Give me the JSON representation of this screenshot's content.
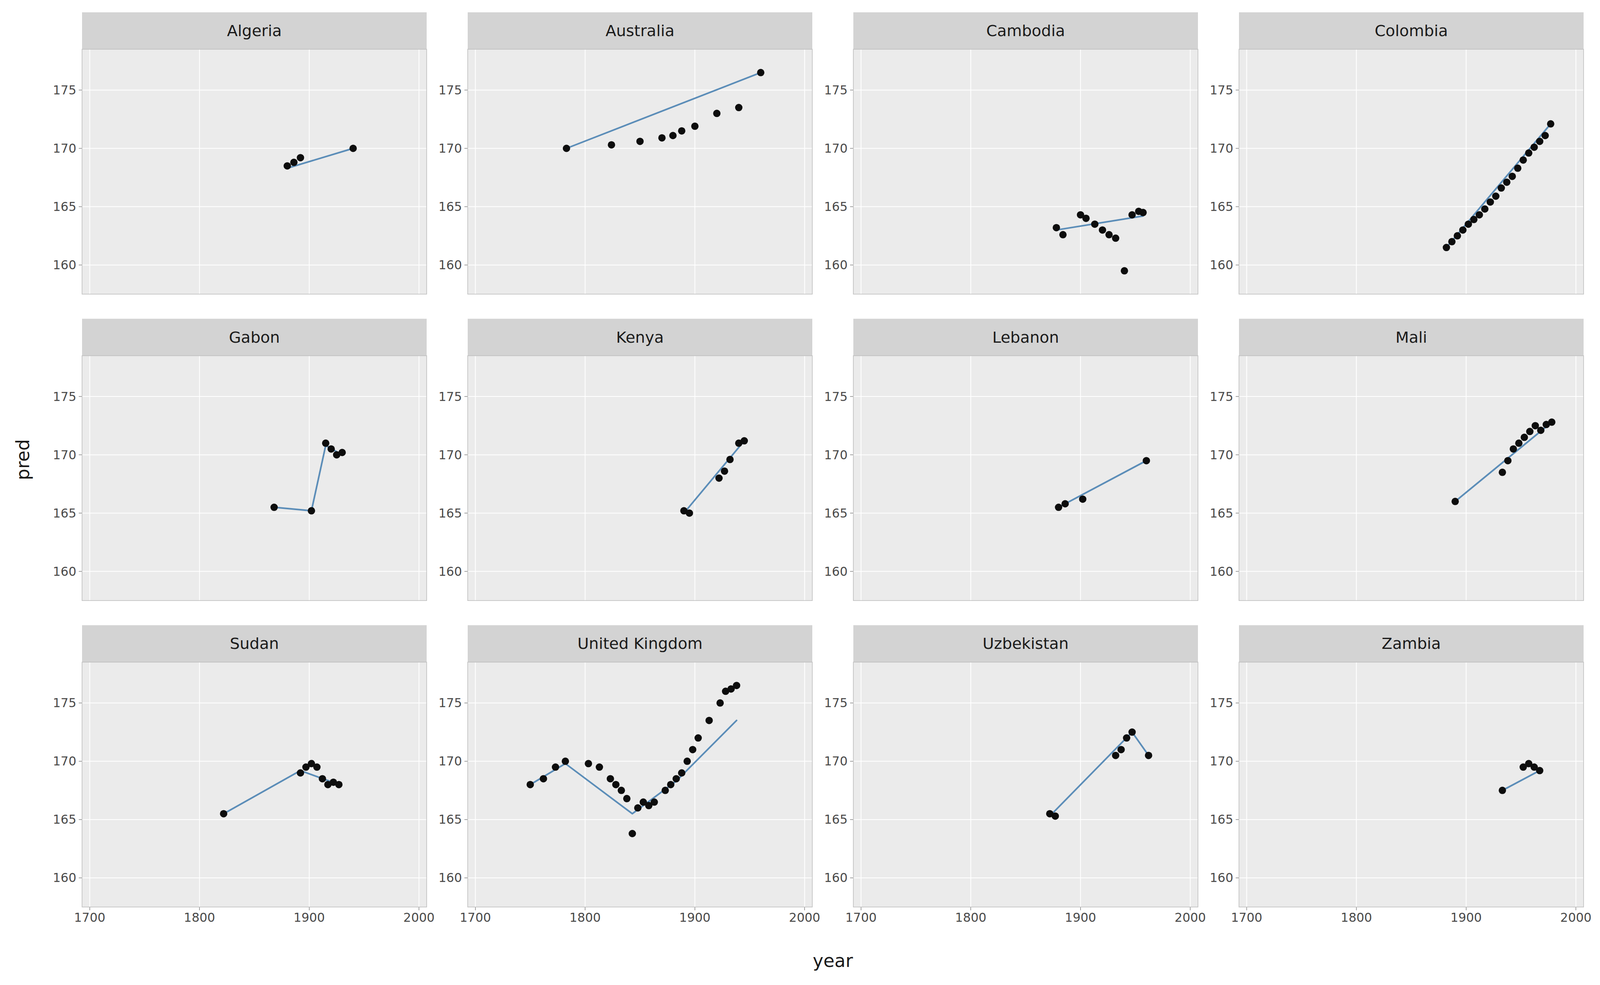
{
  "chart_data": [
    {
      "type": "scatter",
      "title": "Algeria",
      "xlabel": "year",
      "ylabel": "pred",
      "xlim": [
        1693,
        2007
      ],
      "ylim": [
        157.5,
        178.5
      ],
      "xticks": [
        1700,
        1800,
        1900,
        2000
      ],
      "yticks": [
        160,
        165,
        170,
        175
      ],
      "grid": true,
      "tick_labels": "y",
      "series": [
        {
          "type": "scatter",
          "color": "#0D0D0D",
          "x": [
            1880,
            1886,
            1892,
            1940
          ],
          "values": [
            168.5,
            168.8,
            169.2,
            170.0
          ]
        },
        {
          "type": "line",
          "color": "#5B8DB8",
          "x": [
            1880,
            1940
          ],
          "values": [
            168.3,
            170.0
          ]
        }
      ]
    },
    {
      "type": "scatter",
      "title": "Australia",
      "xlim": [
        1693,
        2007
      ],
      "ylim": [
        157.5,
        178.5
      ],
      "xticks": [
        1700,
        1800,
        1900,
        2000
      ],
      "yticks": [
        160,
        165,
        170,
        175
      ],
      "grid": true,
      "tick_labels": "y",
      "series": [
        {
          "type": "scatter",
          "color": "#0D0D0D",
          "x": [
            1783,
            1824,
            1850,
            1870,
            1880,
            1888,
            1900,
            1920,
            1940,
            1960
          ],
          "values": [
            170.0,
            170.3,
            170.6,
            170.9,
            171.1,
            171.5,
            171.9,
            173.0,
            173.5,
            176.5
          ]
        },
        {
          "type": "line",
          "color": "#5B8DB8",
          "x": [
            1783,
            1960
          ],
          "values": [
            170.0,
            176.5
          ]
        }
      ]
    },
    {
      "type": "scatter",
      "title": "Cambodia",
      "xlim": [
        1693,
        2007
      ],
      "ylim": [
        157.5,
        178.5
      ],
      "xticks": [
        1700,
        1800,
        1900,
        2000
      ],
      "yticks": [
        160,
        165,
        170,
        175
      ],
      "grid": true,
      "tick_labels": "y",
      "series": [
        {
          "type": "scatter",
          "color": "#0D0D0D",
          "x": [
            1878,
            1884,
            1900,
            1905,
            1913,
            1920,
            1926,
            1932,
            1940,
            1947,
            1953,
            1957
          ],
          "values": [
            163.2,
            162.6,
            164.3,
            164.0,
            163.5,
            163.0,
            162.6,
            162.3,
            159.5,
            164.3,
            164.6,
            164.5
          ]
        },
        {
          "type": "line",
          "color": "#5B8DB8",
          "x": [
            1878,
            1957
          ],
          "values": [
            163.0,
            164.2
          ]
        }
      ]
    },
    {
      "type": "scatter",
      "title": "Colombia",
      "xlim": [
        1693,
        2007
      ],
      "ylim": [
        157.5,
        178.5
      ],
      "xticks": [
        1700,
        1800,
        1900,
        2000
      ],
      "yticks": [
        160,
        165,
        170,
        175
      ],
      "grid": true,
      "tick_labels": "y",
      "series": [
        {
          "type": "scatter",
          "color": "#0D0D0D",
          "x": [
            1882,
            1887,
            1892,
            1897,
            1902,
            1907,
            1912,
            1917,
            1922,
            1927,
            1932,
            1937,
            1942,
            1947,
            1952,
            1957,
            1962,
            1967,
            1972,
            1977
          ],
          "values": [
            161.5,
            162.0,
            162.5,
            163.0,
            163.5,
            163.9,
            164.3,
            164.8,
            165.4,
            165.9,
            166.6,
            167.1,
            167.6,
            168.3,
            169.0,
            169.6,
            170.1,
            170.6,
            171.1,
            172.1
          ]
        },
        {
          "type": "line",
          "color": "#5B8DB8",
          "x": [
            1882,
            1977
          ],
          "values": [
            161.5,
            172.1
          ]
        }
      ]
    },
    {
      "type": "scatter",
      "title": "Gabon",
      "xlim": [
        1693,
        2007
      ],
      "ylim": [
        157.5,
        178.5
      ],
      "xticks": [
        1700,
        1800,
        1900,
        2000
      ],
      "yticks": [
        160,
        165,
        170,
        175
      ],
      "grid": true,
      "tick_labels": "y",
      "series": [
        {
          "type": "scatter",
          "color": "#0D0D0D",
          "x": [
            1868,
            1902,
            1915,
            1920,
            1925,
            1930
          ],
          "values": [
            165.5,
            165.2,
            171.0,
            170.5,
            170.0,
            170.2
          ]
        },
        {
          "type": "line",
          "color": "#5B8DB8",
          "x": [
            1868,
            1902,
            1915,
            1930
          ],
          "values": [
            165.5,
            165.2,
            170.8,
            170.0
          ]
        }
      ]
    },
    {
      "type": "scatter",
      "title": "Kenya",
      "xlim": [
        1693,
        2007
      ],
      "ylim": [
        157.5,
        178.5
      ],
      "xticks": [
        1700,
        1800,
        1900,
        2000
      ],
      "yticks": [
        160,
        165,
        170,
        175
      ],
      "grid": true,
      "tick_labels": "y",
      "series": [
        {
          "type": "scatter",
          "color": "#0D0D0D",
          "x": [
            1890,
            1895,
            1922,
            1927,
            1932,
            1940,
            1945
          ],
          "values": [
            165.2,
            165.0,
            168.0,
            168.6,
            169.6,
            171.0,
            171.2
          ]
        },
        {
          "type": "line",
          "color": "#5B8DB8",
          "x": [
            1890,
            1945
          ],
          "values": [
            165.0,
            171.2
          ]
        }
      ]
    },
    {
      "type": "scatter",
      "title": "Lebanon",
      "xlim": [
        1693,
        2007
      ],
      "ylim": [
        157.5,
        178.5
      ],
      "xticks": [
        1700,
        1800,
        1900,
        2000
      ],
      "yticks": [
        160,
        165,
        170,
        175
      ],
      "grid": true,
      "tick_labels": "y",
      "series": [
        {
          "type": "scatter",
          "color": "#0D0D0D",
          "x": [
            1880,
            1886,
            1902,
            1960
          ],
          "values": [
            165.5,
            165.8,
            166.2,
            169.5
          ]
        },
        {
          "type": "line",
          "color": "#5B8DB8",
          "x": [
            1880,
            1960
          ],
          "values": [
            165.5,
            169.5
          ]
        }
      ]
    },
    {
      "type": "scatter",
      "title": "Mali",
      "xlim": [
        1693,
        2007
      ],
      "ylim": [
        157.5,
        178.5
      ],
      "xticks": [
        1700,
        1800,
        1900,
        2000
      ],
      "yticks": [
        160,
        165,
        170,
        175
      ],
      "grid": true,
      "tick_labels": "y",
      "series": [
        {
          "type": "scatter",
          "color": "#0D0D0D",
          "x": [
            1890,
            1933,
            1938,
            1943,
            1948,
            1953,
            1958,
            1963,
            1968,
            1973,
            1978
          ],
          "values": [
            166.0,
            168.5,
            169.5,
            170.5,
            171.0,
            171.5,
            172.0,
            172.5,
            172.1,
            172.6,
            172.8
          ]
        },
        {
          "type": "line",
          "color": "#5B8DB8",
          "x": [
            1890,
            1978
          ],
          "values": [
            166.0,
            172.8
          ]
        }
      ]
    },
    {
      "type": "scatter",
      "title": "Sudan",
      "xlim": [
        1693,
        2007
      ],
      "ylim": [
        157.5,
        178.5
      ],
      "xticks": [
        1700,
        1800,
        1900,
        2000
      ],
      "yticks": [
        160,
        165,
        170,
        175
      ],
      "grid": true,
      "series": [
        {
          "type": "scatter",
          "color": "#0D0D0D",
          "x": [
            1822,
            1892,
            1897,
            1902,
            1907,
            1912,
            1917,
            1922,
            1927
          ],
          "values": [
            165.5,
            169.0,
            169.5,
            169.8,
            169.5,
            168.5,
            168.0,
            168.2,
            168.0
          ]
        },
        {
          "type": "line",
          "color": "#5B8DB8",
          "x": [
            1822,
            1892,
            1927
          ],
          "values": [
            165.5,
            169.2,
            168.0
          ]
        }
      ]
    },
    {
      "type": "scatter",
      "title": "United Kingdom",
      "xlim": [
        1693,
        2007
      ],
      "ylim": [
        157.5,
        178.5
      ],
      "xticks": [
        1700,
        1800,
        1900,
        2000
      ],
      "yticks": [
        160,
        165,
        170,
        175
      ],
      "grid": true,
      "series": [
        {
          "type": "scatter",
          "color": "#0D0D0D",
          "x": [
            1750,
            1762,
            1773,
            1782,
            1803,
            1813,
            1823,
            1828,
            1833,
            1838,
            1843,
            1848,
            1853,
            1858,
            1863,
            1873,
            1878,
            1883,
            1888,
            1893,
            1898,
            1903,
            1913,
            1923,
            1928,
            1933,
            1938
          ],
          "values": [
            168.0,
            168.5,
            169.5,
            170.0,
            169.8,
            169.5,
            168.5,
            168.0,
            167.5,
            166.8,
            163.8,
            166.0,
            166.5,
            166.2,
            166.5,
            167.5,
            168.0,
            168.5,
            169.0,
            170.0,
            171.0,
            172.0,
            173.5,
            175.0,
            176.0,
            176.2,
            176.5
          ]
        },
        {
          "type": "line",
          "color": "#5B8DB8",
          "x": [
            1750,
            1782,
            1843,
            1883,
            1938
          ],
          "values": [
            168.0,
            169.8,
            165.5,
            168.3,
            173.5
          ]
        }
      ]
    },
    {
      "type": "scatter",
      "title": "Uzbekistan",
      "xlim": [
        1693,
        2007
      ],
      "ylim": [
        157.5,
        178.5
      ],
      "xticks": [
        1700,
        1800,
        1900,
        2000
      ],
      "yticks": [
        160,
        165,
        170,
        175
      ],
      "grid": true,
      "series": [
        {
          "type": "scatter",
          "color": "#0D0D0D",
          "x": [
            1872,
            1877,
            1932,
            1937,
            1942,
            1947,
            1962
          ],
          "values": [
            165.5,
            165.3,
            170.5,
            171.0,
            172.0,
            172.5,
            170.5
          ]
        },
        {
          "type": "line",
          "color": "#5B8DB8",
          "x": [
            1872,
            1947,
            1962
          ],
          "values": [
            165.3,
            172.5,
            170.5
          ]
        }
      ]
    },
    {
      "type": "scatter",
      "title": "Zambia",
      "xlim": [
        1693,
        2007
      ],
      "ylim": [
        157.5,
        178.5
      ],
      "xticks": [
        1700,
        1800,
        1900,
        2000
      ],
      "yticks": [
        160,
        165,
        170,
        175
      ],
      "grid": true,
      "series": [
        {
          "type": "scatter",
          "color": "#0D0D0D",
          "x": [
            1933,
            1952,
            1957,
            1962,
            1967
          ],
          "values": [
            167.5,
            169.5,
            169.8,
            169.5,
            169.2
          ]
        },
        {
          "type": "line",
          "color": "#5B8DB8",
          "x": [
            1933,
            1967
          ],
          "values": [
            167.5,
            169.2
          ]
        }
      ]
    }
  ]
}
